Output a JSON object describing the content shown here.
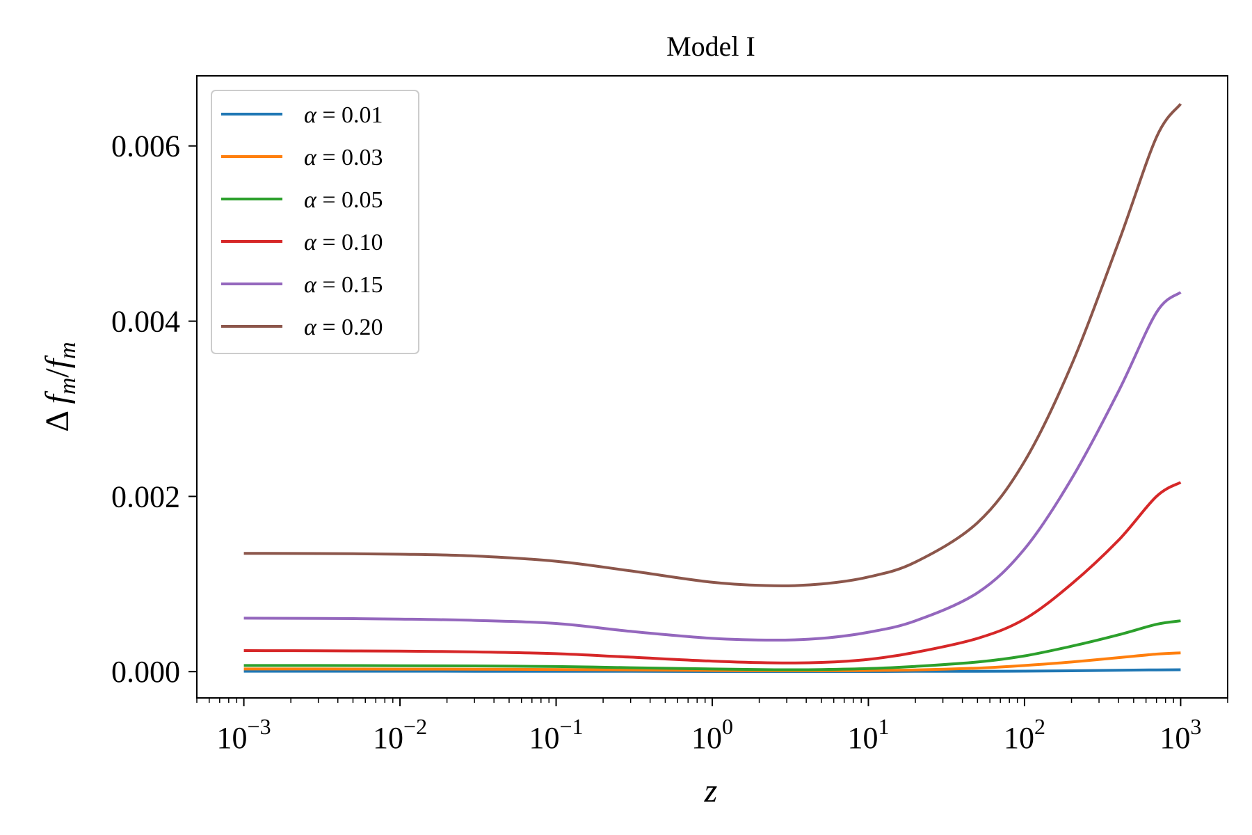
{
  "chart_data": {
    "type": "line",
    "title": "Model I",
    "xlabel": "z",
    "ylabel": "Δf_m/f_m",
    "xscale": "log",
    "xlim": [
      0.0005,
      2000
    ],
    "ylim": [
      -0.0003,
      0.0068
    ],
    "x_ticks": [
      {
        "value": 0.001,
        "base": "10",
        "exp": "−3"
      },
      {
        "value": 0.01,
        "base": "10",
        "exp": "−2"
      },
      {
        "value": 0.1,
        "base": "10",
        "exp": "−1"
      },
      {
        "value": 1,
        "base": "10",
        "exp": "0"
      },
      {
        "value": 10,
        "base": "10",
        "exp": "1"
      },
      {
        "value": 100,
        "base": "10",
        "exp": "2"
      },
      {
        "value": 1000,
        "base": "10",
        "exp": "3"
      }
    ],
    "y_ticks": [
      {
        "value": 0.0,
        "label": "0.000"
      },
      {
        "value": 0.002,
        "label": "0.002"
      },
      {
        "value": 0.004,
        "label": "0.004"
      },
      {
        "value": 0.006,
        "label": "0.006"
      }
    ],
    "legend_position": "top-left",
    "x": [
      0.001,
      0.003,
      0.01,
      0.03,
      0.1,
      0.3,
      1,
      2.5,
      5,
      10,
      20,
      50,
      100,
      200,
      400,
      700,
      1000
    ],
    "series": [
      {
        "name": "α = 0.01",
        "color": "#1f77b4",
        "values": [
          5e-06,
          5e-06,
          5e-06,
          4e-06,
          4e-06,
          3e-06,
          2e-06,
          2e-06,
          2e-06,
          2e-06,
          3e-06,
          4e-06,
          6e-06,
          1e-05,
          1.6e-05,
          2e-05,
          2.2e-05
        ]
      },
      {
        "name": "α = 0.03",
        "color": "#ff7f0e",
        "values": [
          3e-05,
          3e-05,
          2.9e-05,
          2.8e-05,
          2.5e-05,
          2e-05,
          1.3e-05,
          1e-05,
          1e-05,
          1.3e-05,
          2e-05,
          4e-05,
          7e-05,
          0.00011,
          0.00016,
          0.0002,
          0.000215
        ]
      },
      {
        "name": "α = 0.05",
        "color": "#2ca02c",
        "values": [
          7e-05,
          7e-05,
          6.8e-05,
          6.5e-05,
          5.8e-05,
          4.5e-05,
          3e-05,
          2.2e-05,
          2.4e-05,
          3.5e-05,
          6e-05,
          0.00011,
          0.00018,
          0.00029,
          0.00042,
          0.00054,
          0.00058
        ]
      },
      {
        "name": "α = 0.10",
        "color": "#d62728",
        "values": [
          0.00024,
          0.000238,
          0.000234,
          0.000225,
          0.000205,
          0.000165,
          0.00012,
          0.0001,
          0.000105,
          0.00014,
          0.00022,
          0.00038,
          0.0006,
          0.001,
          0.0015,
          0.002,
          0.00216
        ]
      },
      {
        "name": "α = 0.15",
        "color": "#9467bd",
        "values": [
          0.00061,
          0.000608,
          0.0006,
          0.000585,
          0.00055,
          0.00046,
          0.00038,
          0.00036,
          0.00038,
          0.00045,
          0.00058,
          0.0009,
          0.0014,
          0.0022,
          0.0032,
          0.0041,
          0.00433
        ]
      },
      {
        "name": "α = 0.20",
        "color": "#8c564b",
        "values": [
          0.00135,
          0.001348,
          0.00134,
          0.00132,
          0.00126,
          0.00115,
          0.00102,
          0.00098,
          0.001,
          0.00108,
          0.00125,
          0.0017,
          0.0024,
          0.0035,
          0.0049,
          0.0061,
          0.00648
        ]
      }
    ]
  }
}
